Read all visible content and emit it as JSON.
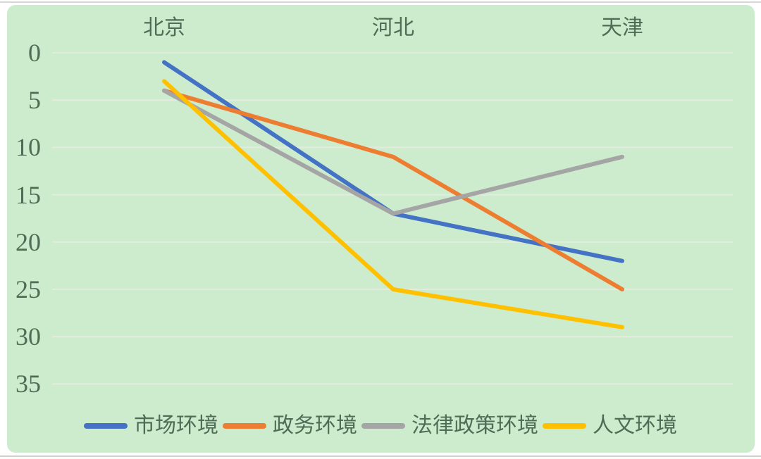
{
  "chart_data": {
    "type": "line",
    "title": "",
    "xlabel": "",
    "ylabel": "",
    "categories": [
      "北京",
      "河北",
      "天津"
    ],
    "series": [
      {
        "name": "市场环境",
        "color": "#4472C4",
        "values": [
          1,
          17,
          22
        ]
      },
      {
        "name": "政务环境",
        "color": "#ED7D31",
        "values": [
          4,
          11,
          25
        ]
      },
      {
        "name": "法律政策环境",
        "color": "#A5A5A5",
        "values": [
          4,
          17,
          11
        ]
      },
      {
        "name": "人文环境",
        "color": "#FFC000",
        "values": [
          3,
          25,
          29
        ]
      }
    ],
    "yticks": [
      0,
      5,
      10,
      15,
      20,
      25,
      30,
      35
    ],
    "ylim": [
      0,
      35
    ],
    "y_axis_reversed": true,
    "grid": true,
    "x_labels_position": "top",
    "legend_position": "bottom"
  },
  "colors": {
    "panel_background": "#cdeccd",
    "gridline": "#e3ebde",
    "axis_text": "#4e6d57"
  }
}
